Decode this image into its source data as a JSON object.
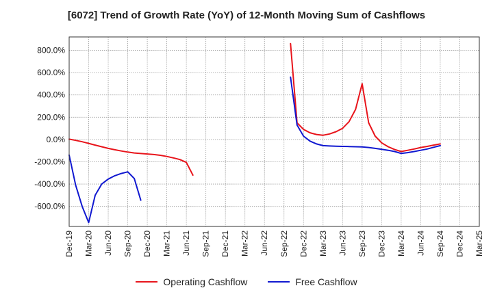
{
  "chart_data": {
    "type": "line",
    "title": "[6072]  Trend of Growth Rate (YoY) of 12-Month Moving Sum of Cashflows",
    "xlabel": "",
    "ylabel": "",
    "y_range": [
      -780,
      920
    ],
    "y_ticks": [
      -600,
      -400,
      -200,
      0,
      200,
      400,
      600,
      800
    ],
    "y_tick_labels": [
      "-600.0%",
      "-400.0%",
      "-200.0%",
      "0.0%",
      "200.0%",
      "400.0%",
      "600.0%",
      "800.0%"
    ],
    "x_range": [
      "2019-12",
      "2025-03"
    ],
    "x_tick_labels": [
      "Dec-19",
      "Mar-20",
      "Jun-20",
      "Sep-20",
      "Dec-20",
      "Mar-21",
      "Jun-21",
      "Sep-21",
      "Dec-21",
      "Mar-22",
      "Jun-22",
      "Sep-22",
      "Dec-22",
      "Mar-23",
      "Jun-23",
      "Sep-23",
      "Dec-23",
      "Mar-24",
      "Jun-24",
      "Sep-24",
      "Dec-24",
      "Mar-25"
    ],
    "grid": true,
    "legend_position": "bottom",
    "series": [
      {
        "name": "Operating Cashflow",
        "color": "#e8141b",
        "segments": [
          [
            [
              "2019-12",
              3
            ],
            [
              "2020-01",
              -8
            ],
            [
              "2020-02",
              -20
            ],
            [
              "2020-03",
              -35
            ],
            [
              "2020-04",
              -50
            ],
            [
              "2020-05",
              -65
            ],
            [
              "2020-06",
              -80
            ],
            [
              "2020-07",
              -92
            ],
            [
              "2020-08",
              -103
            ],
            [
              "2020-09",
              -113
            ],
            [
              "2020-10",
              -121
            ],
            [
              "2020-11",
              -126
            ],
            [
              "2020-12",
              -130
            ],
            [
              "2021-01",
              -135
            ],
            [
              "2021-02",
              -142
            ],
            [
              "2021-03",
              -152
            ],
            [
              "2021-04",
              -165
            ],
            [
              "2021-05",
              -180
            ],
            [
              "2021-06",
              -205
            ],
            [
              "2021-07",
              -320
            ]
          ],
          [
            [
              "2022-10",
              860
            ],
            [
              "2022-11",
              150
            ],
            [
              "2022-12",
              90
            ],
            [
              "2023-01",
              60
            ],
            [
              "2023-02",
              45
            ],
            [
              "2023-03",
              38
            ],
            [
              "2023-04",
              50
            ],
            [
              "2023-05",
              70
            ],
            [
              "2023-06",
              100
            ],
            [
              "2023-07",
              160
            ],
            [
              "2023-08",
              270
            ],
            [
              "2023-09",
              500
            ],
            [
              "2023-10",
              150
            ],
            [
              "2023-11",
              30
            ],
            [
              "2023-12",
              -30
            ],
            [
              "2024-01",
              -65
            ],
            [
              "2024-02",
              -90
            ],
            [
              "2024-03",
              -108
            ],
            [
              "2024-04",
              -97
            ],
            [
              "2024-05",
              -85
            ],
            [
              "2024-06",
              -72
            ],
            [
              "2024-07",
              -62
            ],
            [
              "2024-08",
              -50
            ],
            [
              "2024-09",
              -40
            ]
          ]
        ]
      },
      {
        "name": "Free Cashflow",
        "color": "#1018d0",
        "segments": [
          [
            [
              "2019-12",
              -140
            ],
            [
              "2020-01",
              -410
            ],
            [
              "2020-02",
              -600
            ],
            [
              "2020-03",
              -745
            ],
            [
              "2020-04",
              -500
            ],
            [
              "2020-05",
              -400
            ],
            [
              "2020-06",
              -355
            ],
            [
              "2020-07",
              -325
            ],
            [
              "2020-08",
              -305
            ],
            [
              "2020-09",
              -290
            ],
            [
              "2020-10",
              -350
            ],
            [
              "2020-11",
              -545
            ]
          ],
          [
            [
              "2022-10",
              560
            ],
            [
              "2022-11",
              130
            ],
            [
              "2022-12",
              30
            ],
            [
              "2023-01",
              -15
            ],
            [
              "2023-02",
              -40
            ],
            [
              "2023-03",
              -55
            ],
            [
              "2023-04",
              -58
            ],
            [
              "2023-05",
              -60
            ],
            [
              "2023-06",
              -62
            ],
            [
              "2023-07",
              -63
            ],
            [
              "2023-08",
              -65
            ],
            [
              "2023-09",
              -67
            ],
            [
              "2023-10",
              -72
            ],
            [
              "2023-11",
              -80
            ],
            [
              "2023-12",
              -88
            ],
            [
              "2024-01",
              -97
            ],
            [
              "2024-02",
              -108
            ],
            [
              "2024-03",
              -125
            ],
            [
              "2024-04",
              -118
            ],
            [
              "2024-05",
              -108
            ],
            [
              "2024-06",
              -97
            ],
            [
              "2024-07",
              -85
            ],
            [
              "2024-08",
              -70
            ],
            [
              "2024-09",
              -55
            ]
          ]
        ]
      }
    ]
  }
}
